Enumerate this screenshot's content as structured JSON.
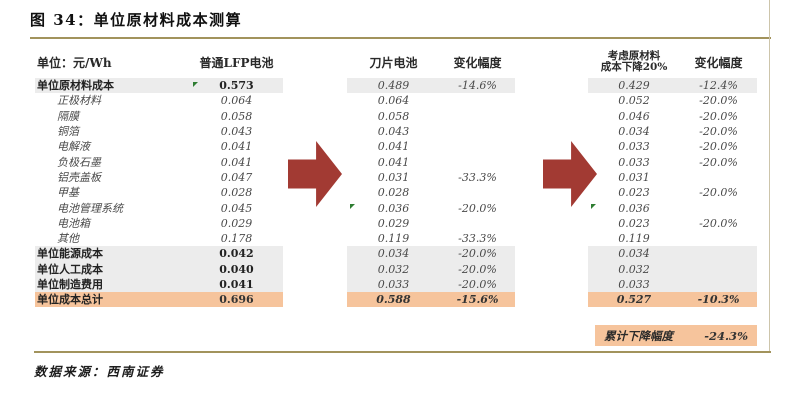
{
  "title": "图 34：单位原材料成本测算",
  "source": "数据来源：西南证券",
  "colors": {
    "gold_rule": "#a2935c",
    "highlight_gray": "#ececec",
    "highlight_orange": "#f6c49c",
    "arrow_red": "#a23a33",
    "marker_green": "#2e7d32"
  },
  "table": {
    "unit_label": "单位：元/Wh",
    "headers": {
      "lfp": "普通LFP电池",
      "blade": "刀片电池",
      "chg1": "变化幅度",
      "reduced_1": "考虑原材料",
      "reduced_2": "成本下降20%",
      "chg2": "变化幅度"
    },
    "rows": [
      {
        "label": "单位原材料成本",
        "sub": false,
        "hl": "gray",
        "lfp": "0.573",
        "blade": "0.489",
        "chg1": "-14.6%",
        "red": "0.429",
        "chg2": "-12.4%",
        "m_lfp": true
      },
      {
        "label": "正极材料",
        "sub": true,
        "lfp": "0.064",
        "blade": "0.064",
        "chg1": "",
        "red": "0.052",
        "chg2": "-20.0%"
      },
      {
        "label": "隔膜",
        "sub": true,
        "lfp": "0.058",
        "blade": "0.058",
        "chg1": "",
        "red": "0.046",
        "chg2": "-20.0%"
      },
      {
        "label": "铜箔",
        "sub": true,
        "lfp": "0.043",
        "blade": "0.043",
        "chg1": "",
        "red": "0.034",
        "chg2": "-20.0%"
      },
      {
        "label": "电解液",
        "sub": true,
        "lfp": "0.041",
        "blade": "0.041",
        "chg1": "",
        "red": "0.033",
        "chg2": "-20.0%"
      },
      {
        "label": "负极石墨",
        "sub": true,
        "lfp": "0.041",
        "blade": "0.041",
        "chg1": "",
        "red": "0.033",
        "chg2": "-20.0%"
      },
      {
        "label": "铝壳盖板",
        "sub": true,
        "lfp": "0.047",
        "blade": "0.031",
        "chg1": "-33.3%",
        "red": "0.031",
        "chg2": "",
        "m_red": true
      },
      {
        "label": "甲基",
        "sub": true,
        "lfp": "0.028",
        "blade": "0.028",
        "chg1": "",
        "red": "0.023",
        "chg2": "-20.0%"
      },
      {
        "label": "电池管理系统",
        "sub": true,
        "lfp": "0.045",
        "blade": "0.036",
        "chg1": "-20.0%",
        "red": "0.036",
        "chg2": "",
        "m_blade": true,
        "m_red": true
      },
      {
        "label": "电池箱",
        "sub": true,
        "lfp": "0.029",
        "blade": "0.029",
        "chg1": "",
        "red": "0.023",
        "chg2": "-20.0%"
      },
      {
        "label": "其他",
        "sub": true,
        "lfp": "0.178",
        "blade": "0.119",
        "chg1": "-33.3%",
        "red": "0.119",
        "chg2": ""
      },
      {
        "label": "单位能源成本",
        "sub": false,
        "hl": "gray",
        "lfp": "0.042",
        "blade": "0.034",
        "chg1": "-20.0%",
        "red": "0.034",
        "chg2": ""
      },
      {
        "label": "单位人工成本",
        "sub": false,
        "hl": "gray",
        "lfp": "0.040",
        "blade": "0.032",
        "chg1": "-20.0%",
        "red": "0.032",
        "chg2": ""
      },
      {
        "label": "单位制造费用",
        "sub": false,
        "hl": "gray",
        "lfp": "0.041",
        "blade": "0.033",
        "chg1": "-20.0%",
        "red": "0.033",
        "chg2": ""
      },
      {
        "label": "单位成本总计",
        "sub": false,
        "hl": "orange",
        "lfp": "0.696",
        "blade": "0.588",
        "chg1": "-15.6%",
        "red": "0.527",
        "chg2": "-10.3%"
      }
    ]
  },
  "footer": {
    "label": "累计下降幅度",
    "value": "-24.3%"
  },
  "icons": {
    "arrow": "red-arrow-right",
    "marker": "green-triangle"
  }
}
